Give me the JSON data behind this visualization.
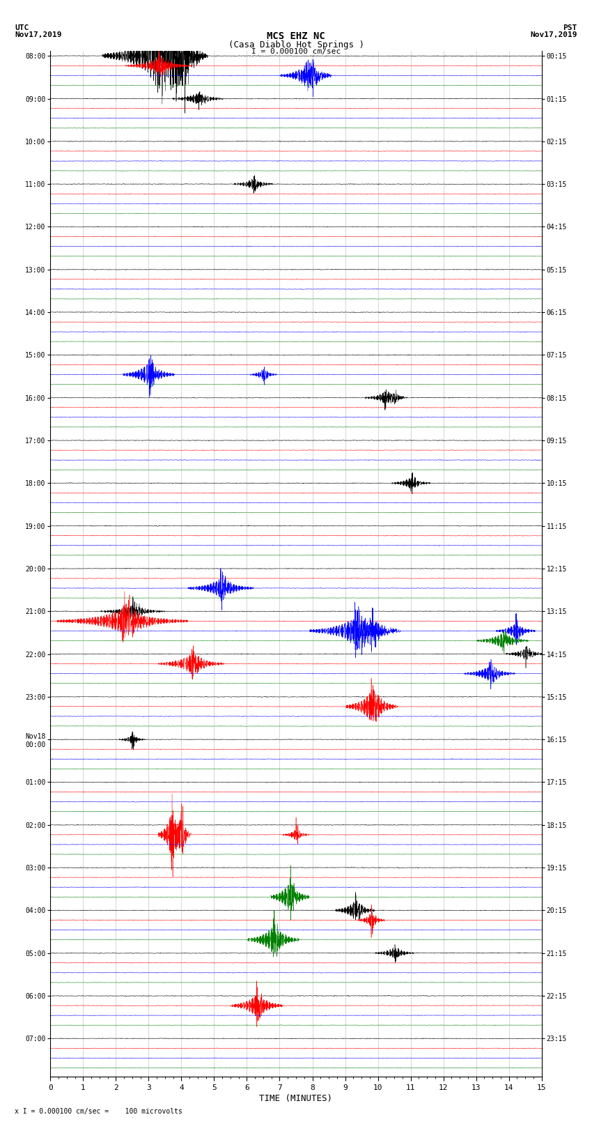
{
  "title_line1": "MCS EHZ NC",
  "title_line2": "(Casa Diablo Hot Springs )",
  "scale_label": "I = 0.000100 cm/sec",
  "utc_label": "UTC\nNov17,2019",
  "pst_label": "PST\nNov17,2019",
  "xlabel": "TIME (MINUTES)",
  "bottom_note": "x I = 0.000100 cm/sec =    100 microvolts",
  "left_times": [
    "08:00",
    "09:00",
    "10:00",
    "11:00",
    "12:00",
    "13:00",
    "14:00",
    "15:00",
    "16:00",
    "17:00",
    "18:00",
    "19:00",
    "20:00",
    "21:00",
    "22:00",
    "23:00",
    "Nov18\n00:00",
    "01:00",
    "02:00",
    "03:00",
    "04:00",
    "05:00",
    "06:00",
    "07:00"
  ],
  "right_times": [
    "00:15",
    "01:15",
    "02:15",
    "03:15",
    "04:15",
    "05:15",
    "06:15",
    "07:15",
    "08:15",
    "09:15",
    "10:15",
    "11:15",
    "12:15",
    "13:15",
    "14:15",
    "15:15",
    "16:15",
    "17:15",
    "18:15",
    "19:15",
    "20:15",
    "21:15",
    "22:15",
    "23:15"
  ],
  "colors": [
    "black",
    "red",
    "blue",
    "green"
  ],
  "n_rows": 24,
  "traces_per_row": 4,
  "x_min": 0,
  "x_max": 15,
  "background_color": "white",
  "grid_color": "#888888",
  "noise_base_amp": 0.06,
  "seed": 42,
  "events": [
    [
      0,
      0,
      3.2,
      0.8,
      6.0
    ],
    [
      0,
      0,
      3.8,
      0.4,
      8.0
    ],
    [
      0,
      0,
      4.1,
      0.3,
      5.0
    ],
    [
      0,
      1,
      3.3,
      0.5,
      2.0
    ],
    [
      0,
      2,
      7.8,
      0.4,
      2.5
    ],
    [
      0,
      2,
      8.0,
      0.3,
      2.0
    ],
    [
      7,
      2,
      3.0,
      0.4,
      3.0
    ],
    [
      7,
      2,
      6.5,
      0.2,
      1.5
    ],
    [
      8,
      0,
      10.2,
      0.3,
      1.5
    ],
    [
      8,
      0,
      10.5,
      0.2,
      1.2
    ],
    [
      12,
      2,
      5.2,
      0.5,
      2.5
    ],
    [
      13,
      1,
      2.2,
      1.0,
      3.0
    ],
    [
      13,
      0,
      2.5,
      0.5,
      1.5
    ],
    [
      13,
      2,
      9.3,
      0.7,
      3.5
    ],
    [
      13,
      2,
      9.8,
      0.4,
      2.5
    ],
    [
      13,
      3,
      13.8,
      0.4,
      2.0
    ],
    [
      13,
      2,
      14.2,
      0.3,
      2.0
    ],
    [
      14,
      1,
      4.3,
      0.5,
      2.5
    ],
    [
      14,
      2,
      13.4,
      0.4,
      2.0
    ],
    [
      14,
      0,
      14.5,
      0.3,
      1.5
    ],
    [
      15,
      1,
      9.8,
      0.4,
      4.0
    ],
    [
      18,
      1,
      3.7,
      0.2,
      6.0
    ],
    [
      18,
      1,
      4.0,
      0.15,
      5.0
    ],
    [
      18,
      1,
      7.5,
      0.2,
      1.5
    ],
    [
      19,
      3,
      7.3,
      0.3,
      4.0
    ],
    [
      20,
      3,
      6.8,
      0.4,
      3.5
    ],
    [
      20,
      0,
      9.3,
      0.3,
      2.5
    ],
    [
      20,
      1,
      9.8,
      0.2,
      2.0
    ],
    [
      22,
      1,
      6.3,
      0.4,
      3.0
    ],
    [
      1,
      0,
      4.5,
      0.4,
      1.5
    ],
    [
      3,
      0,
      6.2,
      0.3,
      1.5
    ],
    [
      10,
      0,
      11.0,
      0.3,
      1.5
    ],
    [
      16,
      0,
      2.5,
      0.2,
      1.2
    ],
    [
      21,
      0,
      10.5,
      0.3,
      1.5
    ]
  ]
}
